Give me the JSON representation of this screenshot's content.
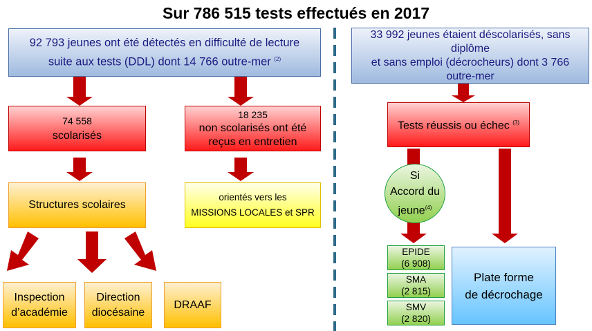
{
  "title": "Sur 786 515 tests effectués en 2017",
  "left": {
    "top_box": {
      "line1": "92 793 jeunes ont été détectés en difficulté de lecture",
      "line2": "suite aux tests (DDL) dont 14 766 outre-mer",
      "note": "(2)"
    },
    "scolarises": {
      "count": "74 558",
      "label": "scolarisés"
    },
    "non_scolarises": {
      "count": "18 235",
      "line1": "non scolarisés ont été",
      "line2": "reçus en entretien"
    },
    "structures": "Structures scolaires",
    "orientes": {
      "line1": "orientés vers les",
      "line2": "MISSIONS LOCALES et SPR"
    },
    "destinations": [
      {
        "line1": "Inspection",
        "line2": "d’académie"
      },
      {
        "line1": "Direction",
        "line2": "diocésaine"
      },
      {
        "line1": "DRAAF",
        "line2": ""
      }
    ]
  },
  "right": {
    "top_box": {
      "line1": "33 992 jeunes étaient déscolarisés, sans",
      "line2": "diplôme",
      "line3": "et sans emploi (décrocheurs) dont 3 766",
      "line4": "outre-mer"
    },
    "tests": {
      "label": "Tests réussis ou échec",
      "note": "(3)"
    },
    "accord": {
      "line1": "Si",
      "line2": "Accord du",
      "line3": "jeune",
      "note": "(4)"
    },
    "programs": [
      {
        "name": "EPIDE",
        "count": "(6 908)"
      },
      {
        "name": "SMA",
        "count": "(2 815)"
      },
      {
        "name": "SMV",
        "count": "(2 820)"
      }
    ],
    "plateforme": {
      "line1": "Plate forme",
      "line2": "de décrochage"
    }
  },
  "colors": {
    "arrow": "#c00000",
    "divider": "#2e6b8a",
    "text_blue": "#1a1a80"
  }
}
